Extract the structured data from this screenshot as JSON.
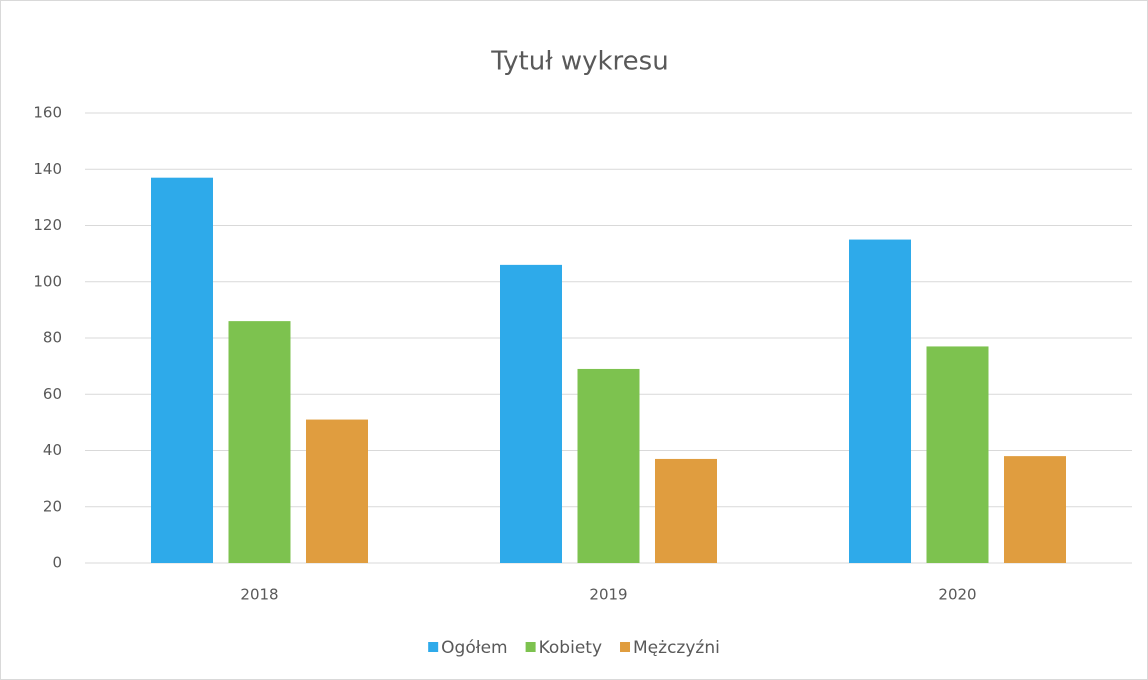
{
  "chart_data": {
    "type": "bar",
    "title": "Tytuł wykresu",
    "categories": [
      "2018",
      "2019",
      "2020"
    ],
    "series": [
      {
        "name": "Ogółem",
        "color": "#2eaaea",
        "values": [
          137,
          106,
          115
        ]
      },
      {
        "name": "Kobiety",
        "color": "#7dc24f",
        "values": [
          86,
          69,
          77
        ]
      },
      {
        "name": "Mężczyźni",
        "color": "#e09d3f",
        "values": [
          51,
          37,
          38
        ]
      }
    ],
    "ylim": [
      0,
      160
    ],
    "yticks": [
      0,
      20,
      40,
      60,
      80,
      100,
      120,
      140,
      160
    ],
    "grid": true,
    "legend": "bottom"
  }
}
